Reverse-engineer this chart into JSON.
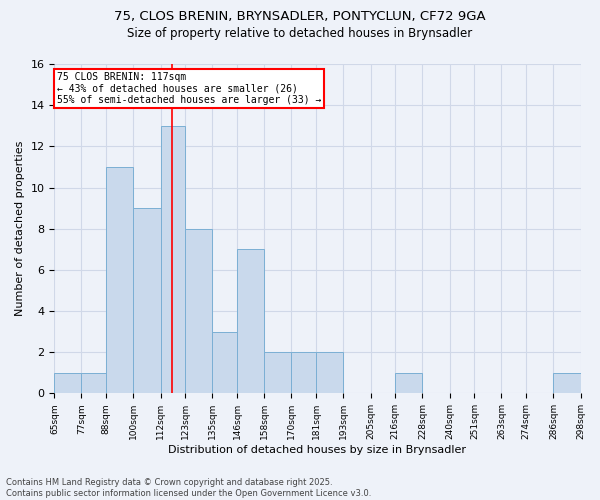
{
  "title_line1": "75, CLOS BRENIN, BRYNSADLER, PONTYCLUN, CF72 9GA",
  "title_line2": "Size of property relative to detached houses in Brynsadler",
  "xlabel": "Distribution of detached houses by size in Brynsadler",
  "ylabel": "Number of detached properties",
  "bin_edges": [
    65,
    77,
    88,
    100,
    112,
    123,
    135,
    146,
    158,
    170,
    181,
    193,
    205,
    216,
    228,
    240,
    251,
    263,
    274,
    286,
    298
  ],
  "bin_counts": [
    1,
    1,
    11,
    9,
    13,
    8,
    3,
    7,
    2,
    2,
    2,
    0,
    0,
    1,
    0,
    0,
    0,
    0,
    0,
    1
  ],
  "bar_color": "#c9d9ec",
  "bar_edgecolor": "#7bafd4",
  "red_line_x": 117,
  "annotation_text": "75 CLOS BRENIN: 117sqm\n← 43% of detached houses are smaller (26)\n55% of semi-detached houses are larger (33) →",
  "annotation_box_color": "white",
  "annotation_box_edgecolor": "red",
  "annotation_fontsize": 7,
  "ylim": [
    0,
    16
  ],
  "yticks": [
    0,
    2,
    4,
    6,
    8,
    10,
    12,
    14,
    16
  ],
  "grid_color": "#d0d8e8",
  "background_color": "#eef2f9",
  "title1_fontsize": 9.5,
  "title2_fontsize": 8.5,
  "footer_line1": "Contains HM Land Registry data © Crown copyright and database right 2025.",
  "footer_line2": "Contains public sector information licensed under the Open Government Licence v3.0."
}
